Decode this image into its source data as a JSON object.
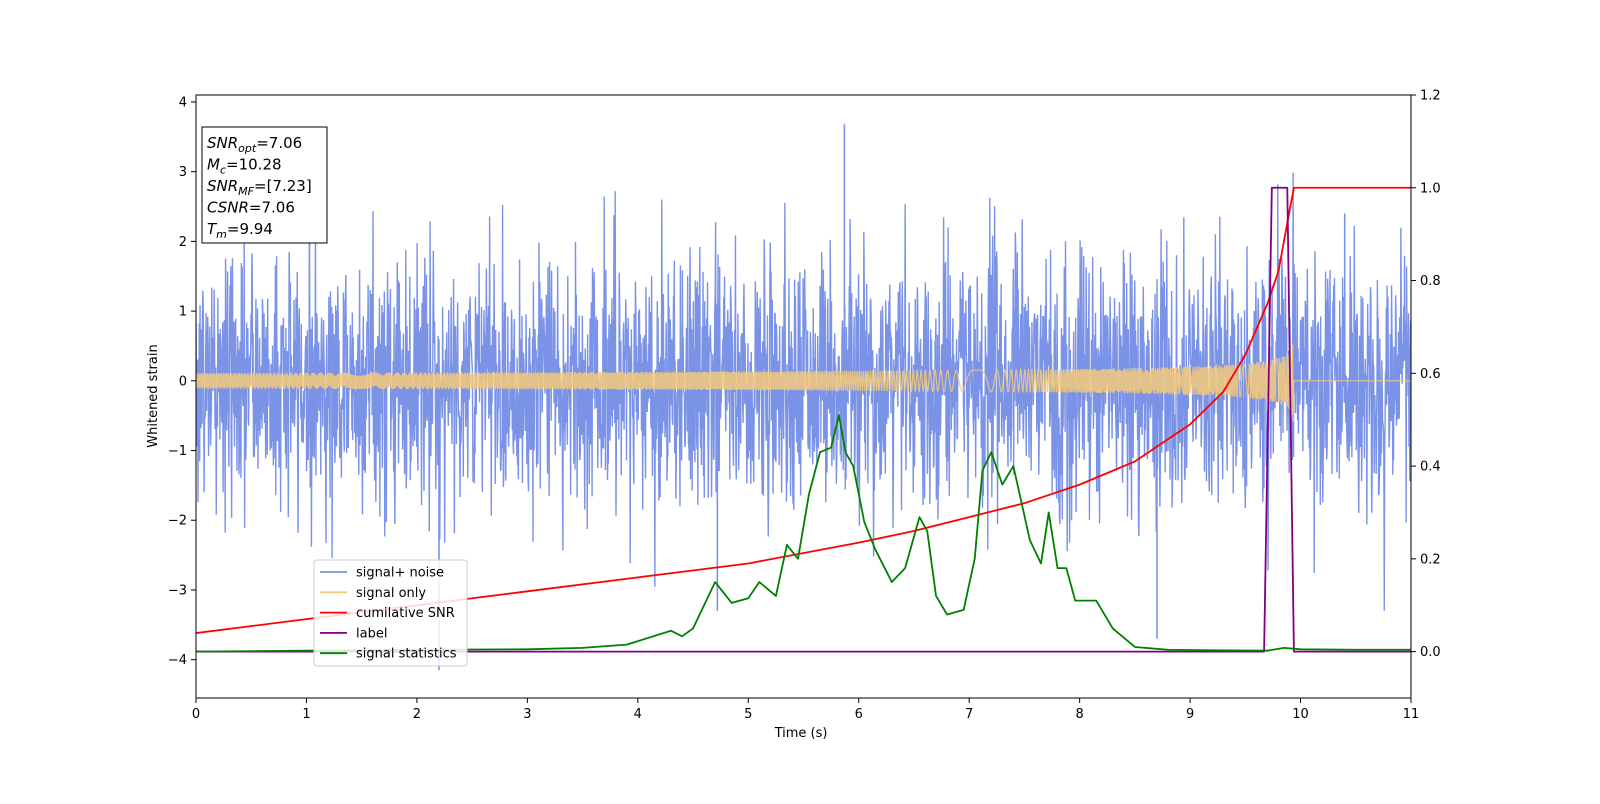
{
  "chart_data": {
    "type": "line",
    "xlabel": "Time (s)",
    "ylabel": "Whitened strain",
    "xlim": [
      0,
      11
    ],
    "ylim_left": [
      -4.55,
      4.1
    ],
    "ylim_right": [
      -0.1,
      1.2
    ],
    "xticks": [
      "0",
      "1",
      "2",
      "3",
      "4",
      "5",
      "6",
      "7",
      "8",
      "9",
      "10",
      "11"
    ],
    "yticks_left": [
      "4",
      "3",
      "2",
      "1",
      "0",
      "−1",
      "−2",
      "−3",
      "−4"
    ],
    "yticks_right": [
      "1.2",
      "1.0",
      "0.8",
      "0.6",
      "0.4",
      "0.2",
      "0.0"
    ],
    "grid": false,
    "legend_position": "lower-left",
    "annotation_lines": [
      {
        "sym": "SNR",
        "sub": "opt",
        "value": "=7.06"
      },
      {
        "sym": "M",
        "sub": "c",
        "value": "=10.28"
      },
      {
        "sym": "SNR",
        "sub": "MF",
        "value": "=[7.23]"
      },
      {
        "sym": "CSNR",
        "sub": "",
        "value": "=7.06"
      },
      {
        "sym": "T",
        "sub": "m",
        "value": "=9.94"
      }
    ],
    "series": [
      {
        "name": "signal+ noise",
        "axis": "left",
        "color": "#7b93e6",
        "kind": "noise",
        "std": 0.9,
        "peaks": [
          [
            5.87,
            3.68
          ],
          [
            2.2,
            -4.15
          ],
          [
            10.4,
            2.4
          ],
          [
            8.7,
            -3.7
          ],
          [
            4.72,
            -3.3
          ]
        ]
      },
      {
        "name": "signal only",
        "axis": "left",
        "color": "#f5c97a",
        "kind": "chirp",
        "merger_time": 9.94,
        "peak_amplitude": 0.8
      },
      {
        "name": "cumilative SNR",
        "axis": "right",
        "color": "#ff0000",
        "x": [
          0,
          1,
          2,
          3,
          4,
          5,
          6,
          6.5,
          7,
          7.5,
          8,
          8.5,
          9,
          9.3,
          9.5,
          9.7,
          9.8,
          9.9,
          9.94,
          11
        ],
        "y": [
          0.04,
          0.07,
          0.1,
          0.13,
          0.16,
          0.19,
          0.235,
          0.26,
          0.29,
          0.32,
          0.36,
          0.41,
          0.49,
          0.56,
          0.64,
          0.75,
          0.82,
          0.95,
          1.0,
          1.0
        ]
      },
      {
        "name": "label",
        "axis": "right",
        "color": "#800080",
        "x": [
          0,
          9.67,
          9.74,
          9.88,
          9.94,
          11
        ],
        "y": [
          0,
          0,
          1.0,
          1.0,
          0,
          0
        ]
      },
      {
        "name": "signal statistics",
        "axis": "right",
        "color": "#008000",
        "x": [
          0,
          1,
          2,
          3,
          3.5,
          3.9,
          4.1,
          4.3,
          4.4,
          4.5,
          4.7,
          4.85,
          5.0,
          5.1,
          5.25,
          5.35,
          5.45,
          5.55,
          5.65,
          5.75,
          5.82,
          5.88,
          5.95,
          6.05,
          6.15,
          6.3,
          6.42,
          6.55,
          6.62,
          6.7,
          6.8,
          6.95,
          7.05,
          7.12,
          7.2,
          7.3,
          7.4,
          7.55,
          7.65,
          7.72,
          7.8,
          7.88,
          7.96,
          8.05,
          8.15,
          8.3,
          8.5,
          8.8,
          9.2,
          9.7,
          9.85,
          10.0,
          10.5,
          11
        ],
        "y": [
          0.0,
          0.002,
          0.004,
          0.005,
          0.008,
          0.015,
          0.03,
          0.045,
          0.033,
          0.05,
          0.15,
          0.105,
          0.115,
          0.15,
          0.12,
          0.23,
          0.2,
          0.34,
          0.43,
          0.44,
          0.51,
          0.43,
          0.4,
          0.28,
          0.22,
          0.15,
          0.18,
          0.29,
          0.26,
          0.12,
          0.08,
          0.09,
          0.2,
          0.39,
          0.43,
          0.36,
          0.4,
          0.24,
          0.19,
          0.3,
          0.18,
          0.18,
          0.11,
          0.11,
          0.11,
          0.05,
          0.01,
          0.004,
          0.003,
          0.002,
          0.008,
          0.005,
          0.004,
          0.004
        ]
      }
    ]
  }
}
